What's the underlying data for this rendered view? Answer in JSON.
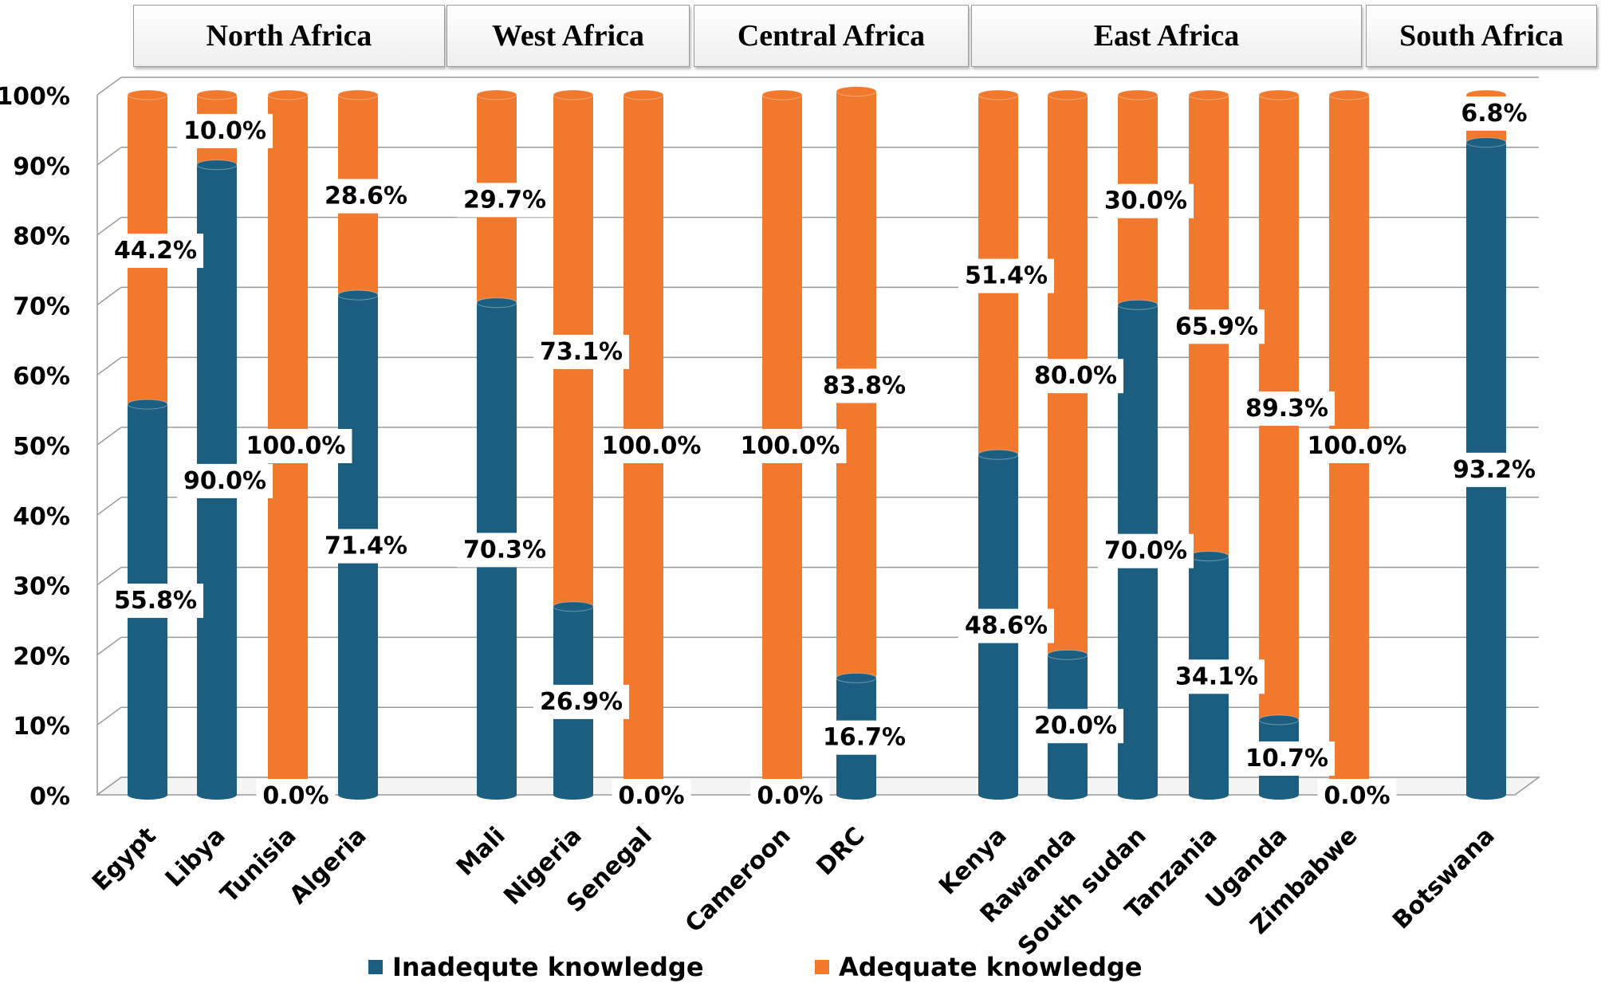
{
  "chart_data": {
    "type": "bar",
    "subtype": "stacked-percent-cylinder",
    "title": "",
    "xlabel": "",
    "ylabel": "",
    "ylim": [
      0,
      100
    ],
    "y_ticks": [
      "0%",
      "10%",
      "20%",
      "30%",
      "40%",
      "50%",
      "60%",
      "70%",
      "80%",
      "90%",
      "100%"
    ],
    "grid": true,
    "legend_position": "bottom",
    "colors": {
      "inadequate": "#1b5e80",
      "adequate": "#f0792d"
    },
    "regions": [
      {
        "name": "North Africa",
        "countries": [
          "Egypt",
          "Libya",
          "Tunisia",
          "Algeria"
        ]
      },
      {
        "name": "West Africa",
        "countries": [
          "Mali",
          "Nigeria",
          "Senegal"
        ]
      },
      {
        "name": "Central Africa",
        "countries": [
          "Cameroon",
          "DRC"
        ]
      },
      {
        "name": "East Africa",
        "countries": [
          "Kenya",
          "Rawanda",
          "South sudan",
          "Tanzania",
          "Uganda",
          "Zimbabwe"
        ]
      },
      {
        "name": "South Africa",
        "countries": [
          "Botswana"
        ]
      }
    ],
    "categories": [
      "Egypt",
      "Libya",
      "Tunisia",
      "Algeria",
      "Mali",
      "Nigeria",
      "Senegal",
      "Cameroon",
      "DRC",
      "Kenya",
      "Rawanda",
      "South sudan",
      "Tanzania",
      "Uganda",
      "Zimbabwe",
      "Botswana"
    ],
    "series": [
      {
        "name": "Inadequte knowledge",
        "values": [
          55.8,
          90.0,
          0.0,
          71.4,
          70.3,
          26.9,
          0.0,
          0.0,
          16.7,
          48.6,
          20.0,
          70.0,
          34.1,
          10.7,
          0.0,
          93.2
        ]
      },
      {
        "name": "Adequate knowledge",
        "values": [
          44.2,
          10.0,
          100.0,
          28.6,
          29.7,
          73.1,
          100.0,
          100.0,
          83.8,
          51.4,
          80.0,
          30.0,
          65.9,
          89.3,
          100.0,
          6.8
        ]
      }
    ],
    "data_labels": {
      "inadequate": [
        "55.8%",
        "90.0%",
        "0.0%",
        "71.4%",
        "70.3%",
        "26.9%",
        "0.0%",
        "0.0%",
        "16.7%",
        "48.6%",
        "20.0%",
        "70.0%",
        "34.1%",
        "10.7%",
        "0.0%",
        "93.2%"
      ],
      "adequate": [
        "44.2%",
        "10.0%",
        "100.0%",
        "28.6%",
        "29.7%",
        "73.1%",
        "100.0%",
        "100.0%",
        "83.8%",
        "51.4%",
        "80.0%",
        "30.0%",
        "65.9%",
        "89.3%",
        "100.0%",
        "6.8%"
      ]
    }
  }
}
